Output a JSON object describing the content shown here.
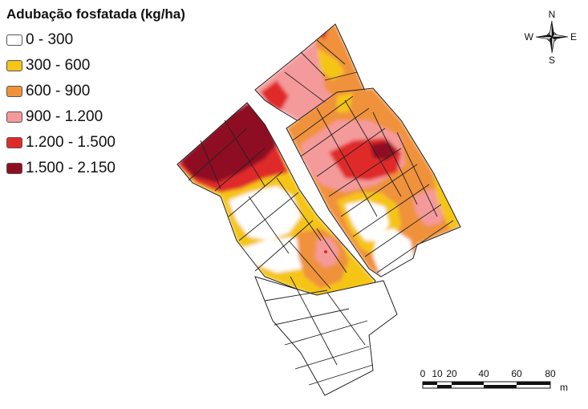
{
  "legend": {
    "title": "Adubação fosfatada (kg/ha)",
    "classes": [
      {
        "label": "0 - 300",
        "color": "#ffffff"
      },
      {
        "label": "300 - 600",
        "color": "#f5c518"
      },
      {
        "label": "600 - 900",
        "color": "#f0923a"
      },
      {
        "label": "900 - 1.200",
        "color": "#f59a9a"
      },
      {
        "label": "1.200 - 1.500",
        "color": "#e02a2a"
      },
      {
        "label": "1.500 - 2.150",
        "color": "#8e1020"
      }
    ]
  },
  "compass": {
    "n": "N",
    "s": "S",
    "e": "E",
    "w": "W"
  },
  "scalebar": {
    "ticks": [
      "0",
      "10",
      "20",
      "40",
      "60",
      "80"
    ],
    "unit": "m"
  }
}
